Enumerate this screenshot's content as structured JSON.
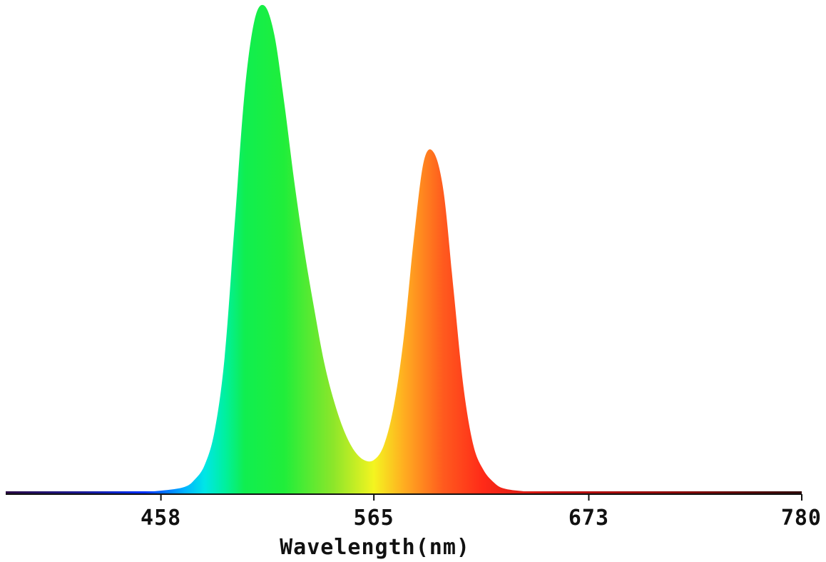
{
  "chart_data": {
    "type": "area",
    "title": "",
    "xlabel": "Wavelength(nm)",
    "ylabel": "",
    "xlim": [
      380,
      780
    ],
    "ylim": [
      0,
      1
    ],
    "grid": false,
    "legend": "none",
    "x_ticks": [
      {
        "value": 458,
        "label": "458"
      },
      {
        "value": 565,
        "label": "565"
      },
      {
        "value": 673,
        "label": "673"
      },
      {
        "value": 780,
        "label": "780"
      }
    ],
    "series": [
      {
        "x": [
          380,
          400,
          420,
          440,
          450,
          460,
          470,
          475,
          480,
          485,
          490,
          495,
          500,
          505,
          510,
          515,
          520,
          525,
          530,
          535,
          540,
          545,
          550,
          555,
          560,
          565,
          570,
          575,
          580,
          585,
          590,
          595,
          600,
          605,
          610,
          615,
          620,
          625,
          630,
          640,
          650,
          700,
          750,
          780
        ],
        "values": [
          0.005,
          0.005,
          0.005,
          0.005,
          0.005,
          0.008,
          0.015,
          0.03,
          0.06,
          0.13,
          0.28,
          0.55,
          0.82,
          0.97,
          1.0,
          0.94,
          0.8,
          0.64,
          0.5,
          0.38,
          0.27,
          0.19,
          0.13,
          0.09,
          0.07,
          0.07,
          0.1,
          0.18,
          0.32,
          0.52,
          0.68,
          0.7,
          0.62,
          0.42,
          0.22,
          0.1,
          0.05,
          0.025,
          0.012,
          0.006,
          0.005,
          0.005,
          0.005,
          0.005
        ]
      }
    ],
    "colors": {
      "axis": "#111111",
      "spectrum_stops": [
        {
          "nm": 380,
          "color": "#2a0a45"
        },
        {
          "nm": 420,
          "color": "#1a1a9a"
        },
        {
          "nm": 450,
          "color": "#0030ff"
        },
        {
          "nm": 470,
          "color": "#00b4ff"
        },
        {
          "nm": 480,
          "color": "#00e6e6"
        },
        {
          "nm": 490,
          "color": "#00f0a0"
        },
        {
          "nm": 500,
          "color": "#10ee50"
        },
        {
          "nm": 520,
          "color": "#20ee3a"
        },
        {
          "nm": 545,
          "color": "#8ee62a"
        },
        {
          "nm": 565,
          "color": "#f4f420"
        },
        {
          "nm": 580,
          "color": "#ffae20"
        },
        {
          "nm": 600,
          "color": "#ff5a1e"
        },
        {
          "nm": 620,
          "color": "#ff2a18"
        },
        {
          "nm": 660,
          "color": "#c01010"
        },
        {
          "nm": 720,
          "color": "#8a0a0a"
        },
        {
          "nm": 780,
          "color": "#300a0a"
        }
      ]
    }
  }
}
